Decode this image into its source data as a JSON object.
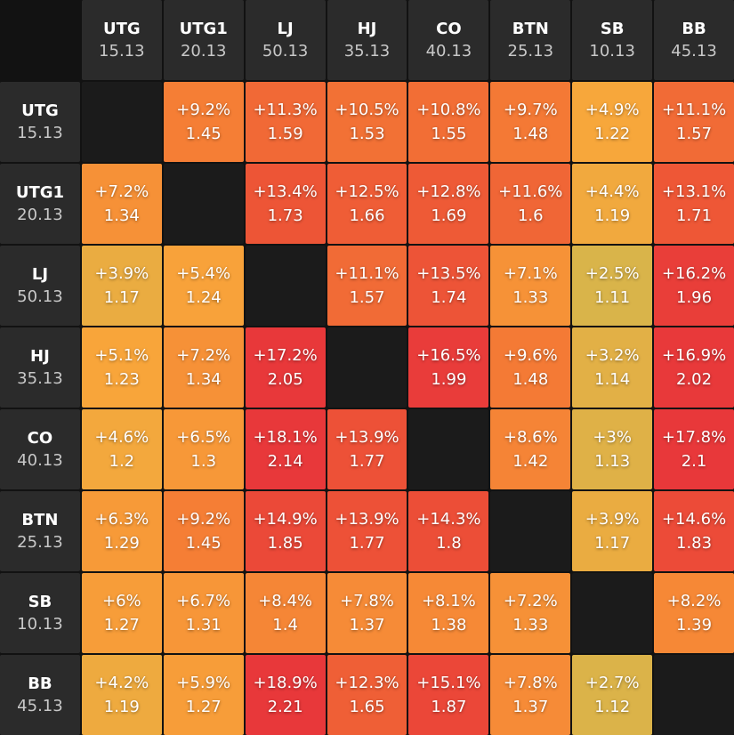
{
  "table": {
    "columns": [
      {
        "name": "UTG",
        "value": "15.13"
      },
      {
        "name": "UTG1",
        "value": "20.13"
      },
      {
        "name": "LJ",
        "value": "50.13"
      },
      {
        "name": "HJ",
        "value": "35.13"
      },
      {
        "name": "CO",
        "value": "40.13"
      },
      {
        "name": "BTN",
        "value": "25.13"
      },
      {
        "name": "SB",
        "value": "10.13"
      },
      {
        "name": "BB",
        "value": "45.13"
      }
    ],
    "rows": [
      {
        "name": "UTG",
        "value": "15.13",
        "cells": [
          null,
          {
            "change": "+9.2%",
            "ratio": "1.45"
          },
          {
            "change": "+11.3%",
            "ratio": "1.59"
          },
          {
            "change": "+10.5%",
            "ratio": "1.53"
          },
          {
            "change": "+10.8%",
            "ratio": "1.55"
          },
          {
            "change": "+9.7%",
            "ratio": "1.48"
          },
          {
            "change": "+4.9%",
            "ratio": "1.22"
          },
          {
            "change": "+11.1%",
            "ratio": "1.57"
          }
        ]
      },
      {
        "name": "UTG1",
        "value": "20.13",
        "cells": [
          {
            "change": "+7.2%",
            "ratio": "1.34"
          },
          null,
          {
            "change": "+13.4%",
            "ratio": "1.73"
          },
          {
            "change": "+12.5%",
            "ratio": "1.66"
          },
          {
            "change": "+12.8%",
            "ratio": "1.69"
          },
          {
            "change": "+11.6%",
            "ratio": "1.6"
          },
          {
            "change": "+4.4%",
            "ratio": "1.19"
          },
          {
            "change": "+13.1%",
            "ratio": "1.71"
          }
        ]
      },
      {
        "name": "LJ",
        "value": "50.13",
        "cells": [
          {
            "change": "+3.9%",
            "ratio": "1.17"
          },
          {
            "change": "+5.4%",
            "ratio": "1.24"
          },
          null,
          {
            "change": "+11.1%",
            "ratio": "1.57"
          },
          {
            "change": "+13.5%",
            "ratio": "1.74"
          },
          {
            "change": "+7.1%",
            "ratio": "1.33"
          },
          {
            "change": "+2.5%",
            "ratio": "1.11"
          },
          {
            "change": "+16.2%",
            "ratio": "1.96"
          }
        ]
      },
      {
        "name": "HJ",
        "value": "35.13",
        "cells": [
          {
            "change": "+5.1%",
            "ratio": "1.23"
          },
          {
            "change": "+7.2%",
            "ratio": "1.34"
          },
          {
            "change": "+17.2%",
            "ratio": "2.05"
          },
          null,
          {
            "change": "+16.5%",
            "ratio": "1.99"
          },
          {
            "change": "+9.6%",
            "ratio": "1.48"
          },
          {
            "change": "+3.2%",
            "ratio": "1.14"
          },
          {
            "change": "+16.9%",
            "ratio": "2.02"
          }
        ]
      },
      {
        "name": "CO",
        "value": "40.13",
        "cells": [
          {
            "change": "+4.6%",
            "ratio": "1.2"
          },
          {
            "change": "+6.5%",
            "ratio": "1.3"
          },
          {
            "change": "+18.1%",
            "ratio": "2.14"
          },
          {
            "change": "+13.9%",
            "ratio": "1.77"
          },
          null,
          {
            "change": "+8.6%",
            "ratio": "1.42"
          },
          {
            "change": "+3%",
            "ratio": "1.13"
          },
          {
            "change": "+17.8%",
            "ratio": "2.1"
          }
        ]
      },
      {
        "name": "BTN",
        "value": "25.13",
        "cells": [
          {
            "change": "+6.3%",
            "ratio": "1.29"
          },
          {
            "change": "+9.2%",
            "ratio": "1.45"
          },
          {
            "change": "+14.9%",
            "ratio": "1.85"
          },
          {
            "change": "+13.9%",
            "ratio": "1.77"
          },
          {
            "change": "+14.3%",
            "ratio": "1.8"
          },
          null,
          {
            "change": "+3.9%",
            "ratio": "1.17"
          },
          {
            "change": "+14.6%",
            "ratio": "1.83"
          }
        ]
      },
      {
        "name": "SB",
        "value": "10.13",
        "cells": [
          {
            "change": "+6%",
            "ratio": "1.27"
          },
          {
            "change": "+6.7%",
            "ratio": "1.31"
          },
          {
            "change": "+8.4%",
            "ratio": "1.4"
          },
          {
            "change": "+7.8%",
            "ratio": "1.37"
          },
          {
            "change": "+8.1%",
            "ratio": "1.38"
          },
          {
            "change": "+7.2%",
            "ratio": "1.33"
          },
          null,
          {
            "change": "+8.2%",
            "ratio": "1.39"
          }
        ]
      },
      {
        "name": "BB",
        "value": "45.13",
        "cells": [
          {
            "change": "+4.2%",
            "ratio": "1.19"
          },
          {
            "change": "+5.9%",
            "ratio": "1.27"
          },
          {
            "change": "+18.9%",
            "ratio": "2.21"
          },
          {
            "change": "+12.3%",
            "ratio": "1.65"
          },
          {
            "change": "+15.1%",
            "ratio": "1.87"
          },
          {
            "change": "+7.8%",
            "ratio": "1.37"
          },
          {
            "change": "+2.7%",
            "ratio": "1.12"
          },
          null
        ]
      }
    ]
  }
}
